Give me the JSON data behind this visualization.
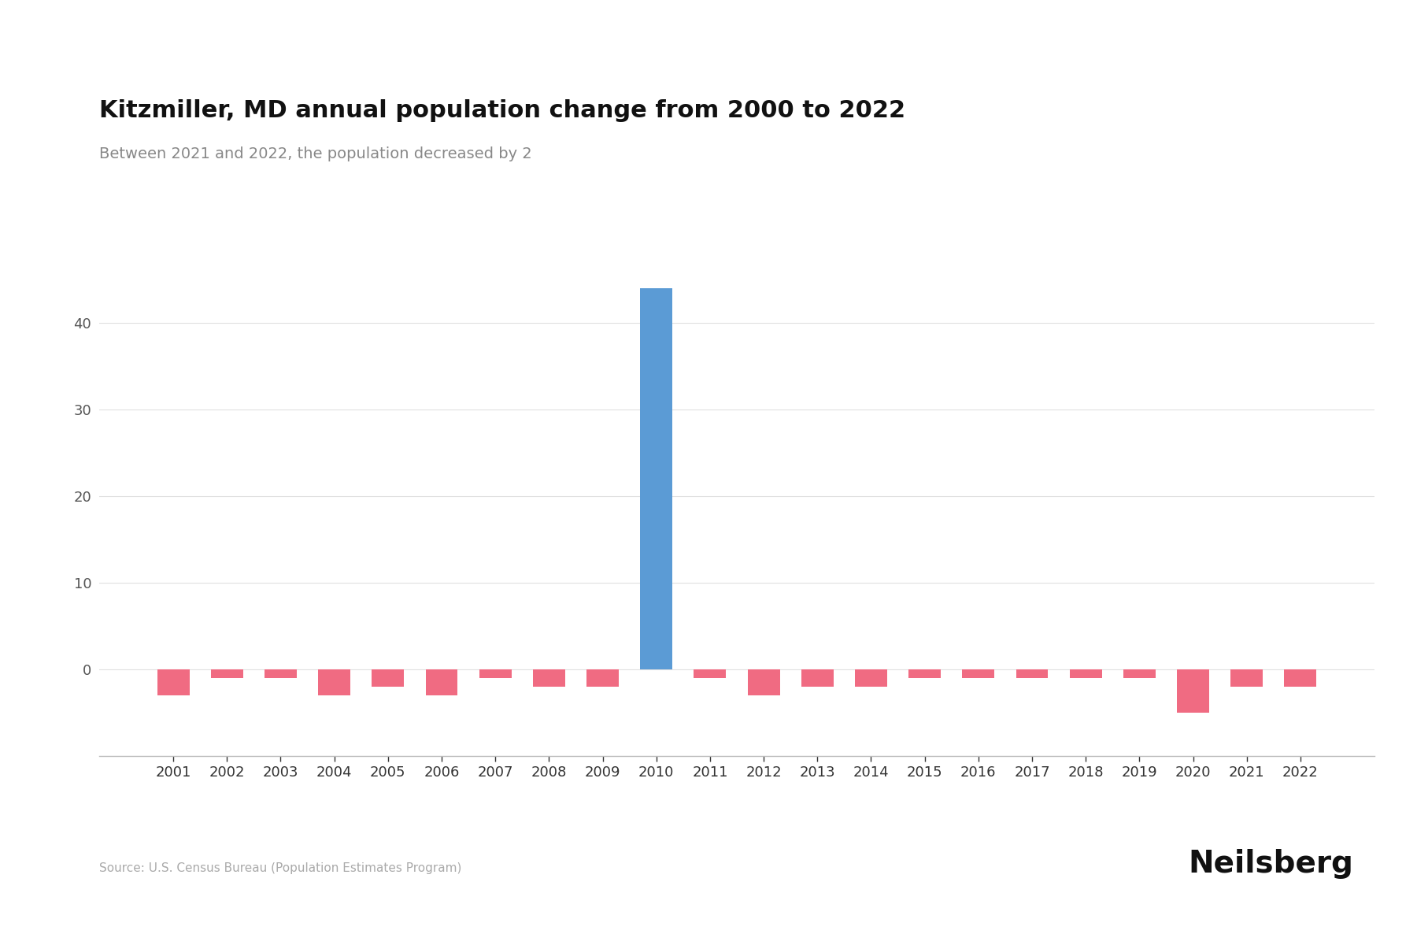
{
  "title": "Kitzmiller, MD annual population change from 2000 to 2022",
  "subtitle": "Between 2021 and 2022, the population decreased by 2",
  "source": "Source: U.S. Census Bureau (Population Estimates Program)",
  "branding": "Neilsberg",
  "years": [
    2001,
    2002,
    2003,
    2004,
    2005,
    2006,
    2007,
    2008,
    2009,
    2010,
    2011,
    2012,
    2013,
    2014,
    2015,
    2016,
    2017,
    2018,
    2019,
    2020,
    2021,
    2022
  ],
  "values": [
    -3,
    -1,
    -1,
    -3,
    -2,
    -3,
    -1,
    -2,
    -2,
    44,
    -1,
    -3,
    -2,
    -2,
    -1,
    -1,
    -1,
    -1,
    -1,
    -5,
    -2,
    -2
  ],
  "bar_colors_flag": [
    0,
    0,
    0,
    0,
    0,
    0,
    0,
    0,
    0,
    1,
    0,
    0,
    0,
    0,
    0,
    0,
    0,
    0,
    0,
    0,
    0,
    0
  ],
  "positive_color": "#5b9bd5",
  "negative_color": "#f06b82",
  "background_color": "#ffffff",
  "title_fontsize": 22,
  "subtitle_fontsize": 14,
  "tick_fontsize": 13,
  "source_fontsize": 11,
  "branding_fontsize": 28,
  "ylim_min": -10,
  "ylim_max": 50,
  "yticks": [
    0,
    10,
    20,
    30,
    40
  ],
  "grid_color": "#e0e0e0"
}
